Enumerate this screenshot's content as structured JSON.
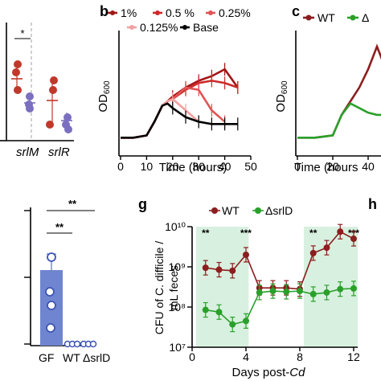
{
  "panel_letters": {
    "b": "b",
    "c": "c",
    "g": "g",
    "h": "h"
  },
  "colors": {
    "wt": "#8b1e1e",
    "srld": "#2aa02a",
    "shade": "#d8f0e0",
    "purple": "#7b6fc0",
    "red": "#c0392b",
    "bar_blue": "#6f85cf"
  },
  "top_left": {
    "sig": "*",
    "genes": [
      "srlM",
      "srlR"
    ]
  },
  "bottom_left": {
    "sig_top": "**",
    "sig_mid": "**",
    "categories": [
      "GF",
      "WT",
      "ΔsrlD"
    ]
  },
  "chart_data": [
    {
      "type": "line",
      "panel": "b",
      "xlabel": "Time (hours)",
      "ylabel": "OD600",
      "xlim": [
        0,
        50
      ],
      "ylim": [
        0,
        0.55
      ],
      "xticks": [
        "0",
        "10",
        "20",
        "30",
        "40",
        "50"
      ],
      "legend_placement": "top",
      "series": [
        {
          "name": "1%",
          "color": "#a31515",
          "x": [
            0,
            5,
            10,
            13,
            16,
            18,
            20,
            25,
            30,
            35,
            40,
            45
          ],
          "y": [
            0.08,
            0.08,
            0.09,
            0.15,
            0.22,
            0.24,
            0.26,
            0.3,
            0.33,
            0.35,
            0.38,
            0.3
          ]
        },
        {
          "name": "0.5 %",
          "color": "#cc2a2a",
          "x": [
            0,
            5,
            10,
            13,
            16,
            18,
            20,
            25,
            30,
            35,
            40,
            45
          ],
          "y": [
            0.08,
            0.08,
            0.09,
            0.15,
            0.22,
            0.24,
            0.25,
            0.29,
            0.32,
            0.33,
            0.32,
            0.3
          ]
        },
        {
          "name": "0.25%",
          "color": "#e05555",
          "x": [
            0,
            5,
            10,
            13,
            16,
            18,
            20,
            25,
            30,
            35,
            40
          ],
          "y": [
            0.08,
            0.08,
            0.09,
            0.15,
            0.22,
            0.24,
            0.25,
            0.3,
            0.29,
            0.2,
            0.15
          ]
        },
        {
          "name": "0.125%",
          "color": "#f2a0a0",
          "x": [
            0,
            5,
            10,
            13,
            16,
            18,
            20,
            25,
            30
          ],
          "y": [
            0.08,
            0.08,
            0.09,
            0.15,
            0.22,
            0.24,
            0.25,
            0.2,
            0.15
          ]
        },
        {
          "name": "Base",
          "color": "#000000",
          "x": [
            0,
            5,
            10,
            13,
            16,
            18,
            20,
            25,
            30,
            35,
            40,
            45
          ],
          "y": [
            0.08,
            0.08,
            0.09,
            0.15,
            0.22,
            0.23,
            0.21,
            0.17,
            0.15,
            0.14,
            0.14,
            0.14
          ]
        }
      ]
    },
    {
      "type": "line",
      "panel": "c",
      "xlabel": "Time (hours",
      "ylabel": "OD600",
      "xlim": [
        0,
        50
      ],
      "ylim": [
        0,
        0.55
      ],
      "xticks": [
        "0",
        "20",
        "40"
      ],
      "yticks": [],
      "legend_placement": "top",
      "series": [
        {
          "name": "WT",
          "color": "#8b1e1e",
          "x": [
            0,
            10,
            20,
            25,
            30,
            35,
            40,
            45,
            50
          ],
          "y": [
            0.08,
            0.08,
            0.09,
            0.18,
            0.24,
            0.3,
            0.38,
            0.48,
            0.38
          ]
        },
        {
          "name": "Δ",
          "color": "#2aa02a",
          "x": [
            0,
            10,
            20,
            25,
            30,
            35,
            40,
            45,
            50
          ],
          "y": [
            0.08,
            0.08,
            0.09,
            0.18,
            0.23,
            0.21,
            0.19,
            0.18,
            0.18
          ]
        }
      ]
    },
    {
      "type": "line",
      "panel": "g",
      "xlabel": "Days post-",
      "xlabel_italic": "Cd",
      "ylabel_line1": "CFU of C. difficile /",
      "ylabel_line2": "mL feces",
      "scale": "log",
      "ylim": [
        10000000,
        10000000000
      ],
      "yticks": [
        "10⁷",
        "10⁸",
        "10⁹",
        "10¹⁰"
      ],
      "xlim": [
        0,
        12.3
      ],
      "xticks": [
        "0",
        "4",
        "8",
        "12"
      ],
      "legend_placement": "top",
      "shaded_ranges": [
        [
          0.3,
          4.2
        ],
        [
          8.3,
          12.3
        ]
      ],
      "annotations": [
        {
          "x": 1,
          "text": "**"
        },
        {
          "x": 4,
          "text": "***"
        },
        {
          "x": 9,
          "text": "**"
        },
        {
          "x": 12,
          "text": "***"
        }
      ],
      "series": [
        {
          "name": "WT",
          "color": "#8b1e1e",
          "x": [
            1,
            2,
            3,
            4,
            5,
            6,
            7,
            8,
            9,
            10,
            11,
            12
          ],
          "y": [
            950000000,
            850000000,
            800000000,
            2000000000,
            300000000,
            300000000,
            300000000,
            280000000,
            2200000000,
            3000000000,
            7500000000,
            5000000000
          ]
        },
        {
          "name": "ΔsrlD",
          "color": "#2aa02a",
          "x": [
            1,
            2,
            3,
            4,
            5,
            6,
            7,
            8,
            9,
            10,
            11,
            12
          ],
          "y": [
            85000000,
            75000000,
            37000000,
            45000000,
            230000000,
            250000000,
            240000000,
            250000000,
            210000000,
            230000000,
            280000000,
            290000000
          ]
        }
      ]
    }
  ]
}
